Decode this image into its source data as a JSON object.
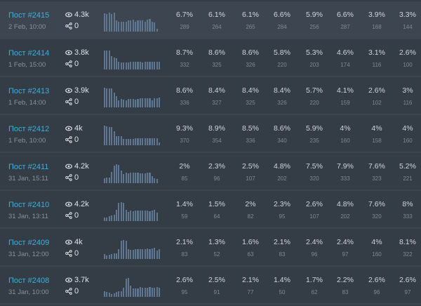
{
  "colors": {
    "accent": "#38b2dc",
    "bar": "#5f7690"
  },
  "posts": [
    {
      "title": "Пост #2415",
      "date": "2 Feb, 10:00",
      "views": "4.3k",
      "shares": "0",
      "highlighted": true,
      "spark": [
        88,
        84,
        90,
        84,
        90,
        52,
        48,
        48,
        48,
        48,
        52,
        52,
        56,
        48,
        52,
        52,
        52,
        48,
        58,
        60,
        48,
        44,
        14,
        0
      ],
      "cells": [
        [
          "6.7%",
          "289"
        ],
        [
          "6.1%",
          "264"
        ],
        [
          "6.1%",
          "265"
        ],
        [
          "6.6%",
          "284"
        ],
        [
          "5.9%",
          "256"
        ],
        [
          "6.6%",
          "287"
        ],
        [
          "3.9%",
          "168"
        ],
        [
          "3.3%",
          "144"
        ]
      ]
    },
    {
      "title": "Пост #2414",
      "date": "1 Feb, 15:00",
      "views": "3.8k",
      "shares": "0",
      "spark": [
        90,
        90,
        90,
        62,
        56,
        52,
        38,
        34,
        34,
        34,
        34,
        36,
        36,
        36,
        36,
        36,
        32,
        36,
        36,
        36,
        36,
        36,
        36,
        36
      ],
      "cells": [
        [
          "8.7%",
          "332"
        ],
        [
          "8.6%",
          "325"
        ],
        [
          "8.6%",
          "326"
        ],
        [
          "5.8%",
          "220"
        ],
        [
          "5.3%",
          "203"
        ],
        [
          "4.6%",
          "174"
        ],
        [
          "3.1%",
          "116"
        ],
        [
          "2.6%",
          "100"
        ]
      ]
    },
    {
      "title": "Пост #2413",
      "date": "1 Feb, 14:00",
      "views": "3.9k",
      "shares": "0",
      "spark": [
        92,
        90,
        90,
        90,
        70,
        52,
        34,
        40,
        36,
        34,
        40,
        40,
        40,
        38,
        40,
        44,
        42,
        42,
        44,
        42,
        34,
        44,
        42,
        46
      ],
      "cells": [
        [
          "8.6%",
          "336"
        ],
        [
          "8.4%",
          "327"
        ],
        [
          "8.4%",
          "325"
        ],
        [
          "8.4%",
          "326"
        ],
        [
          "5.7%",
          "220"
        ],
        [
          "4.1%",
          "159"
        ],
        [
          "2.6%",
          "102"
        ],
        [
          "3%",
          "116"
        ]
      ]
    },
    {
      "title": "Пост #2412",
      "date": "1 Feb, 10:00",
      "views": "4k",
      "shares": "0",
      "spark": [
        95,
        90,
        88,
        88,
        66,
        44,
        44,
        44,
        30,
        30,
        30,
        30,
        30,
        32,
        32,
        32,
        32,
        32,
        32,
        32,
        32,
        32,
        32,
        12
      ],
      "cells": [
        [
          "9.3%",
          "370"
        ],
        [
          "8.9%",
          "354"
        ],
        [
          "8.5%",
          "336"
        ],
        [
          "8.6%",
          "340"
        ],
        [
          "5.9%",
          "235"
        ],
        [
          "4%",
          "160"
        ],
        [
          "4%",
          "158"
        ],
        [
          "4%",
          "160"
        ]
      ]
    },
    {
      "title": "Пост #2411",
      "date": "31 Jan, 15:11",
      "views": "4.2k",
      "shares": "0",
      "spark": [
        22,
        26,
        28,
        52,
        84,
        90,
        88,
        60,
        42,
        50,
        48,
        50,
        50,
        50,
        50,
        48,
        48,
        48,
        50,
        50,
        34,
        24,
        20,
        0
      ],
      "cells": [
        [
          "2%",
          "85"
        ],
        [
          "2.3%",
          "96"
        ],
        [
          "2.5%",
          "107"
        ],
        [
          "4.8%",
          "202"
        ],
        [
          "7.5%",
          "320"
        ],
        [
          "7.9%",
          "333"
        ],
        [
          "7.6%",
          "323"
        ],
        [
          "5.2%",
          "221"
        ]
      ]
    },
    {
      "title": "Пост #2410",
      "date": "31 Jan, 13:11",
      "views": "4.2k",
      "shares": "0",
      "spark": [
        16,
        16,
        24,
        28,
        30,
        54,
        88,
        90,
        88,
        52,
        44,
        50,
        48,
        50,
        50,
        50,
        50,
        50,
        50,
        48,
        50,
        52,
        40,
        0
      ],
      "cells": [
        [
          "1.4%",
          "59"
        ],
        [
          "1.5%",
          "64"
        ],
        [
          "2%",
          "82"
        ],
        [
          "2.3%",
          "95"
        ],
        [
          "2.6%",
          "107"
        ],
        [
          "4.8%",
          "202"
        ],
        [
          "7.6%",
          "320"
        ],
        [
          "8%",
          "333"
        ]
      ]
    },
    {
      "title": "Пост #2409",
      "date": "31 Jan, 12:00",
      "views": "4k",
      "shares": "0",
      "spark": [
        24,
        16,
        20,
        24,
        28,
        28,
        46,
        88,
        90,
        88,
        46,
        42,
        42,
        48,
        48,
        48,
        48,
        48,
        50,
        48,
        50,
        52,
        40,
        46
      ],
      "cells": [
        [
          "2.1%",
          "83"
        ],
        [
          "1.3%",
          "52"
        ],
        [
          "1.6%",
          "63"
        ],
        [
          "2.1%",
          "83"
        ],
        [
          "2.4%",
          "96"
        ],
        [
          "2.4%",
          "97"
        ],
        [
          "4%",
          "160"
        ],
        [
          "8.1%",
          "322"
        ]
      ]
    },
    {
      "title": "Пост #2408",
      "date": "31 Jan, 10:00",
      "views": "3.7k",
      "shares": "0",
      "spark": [
        26,
        24,
        20,
        14,
        18,
        24,
        26,
        26,
        42,
        86,
        90,
        52,
        40,
        40,
        40,
        46,
        44,
        44,
        42,
        46,
        44,
        44,
        48,
        42
      ],
      "cells": [
        [
          "2.6%",
          "95"
        ],
        [
          "2.5%",
          "91"
        ],
        [
          "2.1%",
          "77"
        ],
        [
          "1.4%",
          "50"
        ],
        [
          "1.7%",
          "62"
        ],
        [
          "2.2%",
          "83"
        ],
        [
          "2.6%",
          "96"
        ],
        [
          "2.6%",
          "97"
        ]
      ]
    }
  ]
}
